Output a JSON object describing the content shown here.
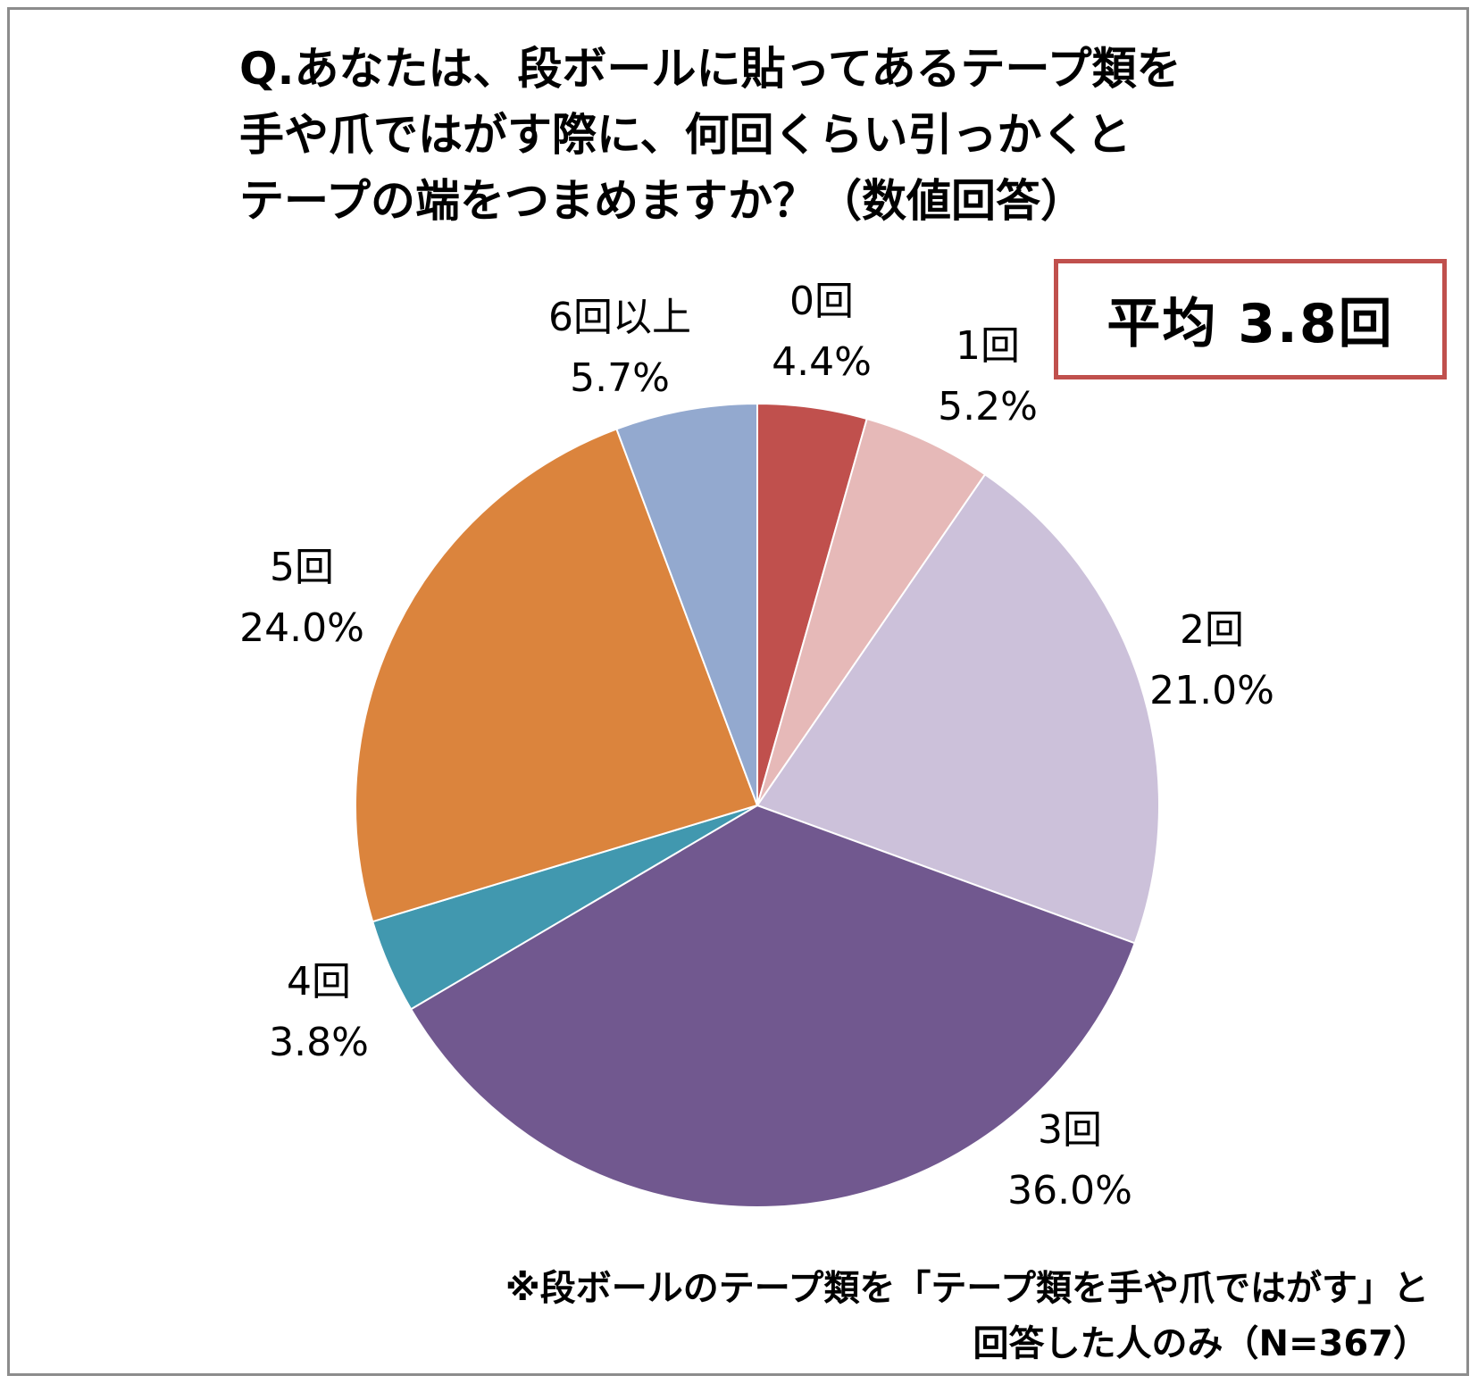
{
  "title": {
    "lines": [
      "Q.あなたは、段ボールに貼ってあるテープ類を",
      "手や爪ではがす際に、何回くらい引っかくと",
      "テープの端をつまめますか？（数値回答）"
    ]
  },
  "average_box": {
    "text": "平均 3.8回"
  },
  "footnote": {
    "lines": [
      "※段ボールのテープ類を「テープ類を手や爪ではがす」と",
      "回答した人のみ（N=367）"
    ]
  },
  "chart_data": {
    "type": "pie",
    "start_angle": "12 o'clock",
    "direction": "clockwise",
    "slices": [
      {
        "label": "0回",
        "value": 4.4,
        "value_label": "4.4%",
        "color": "#c0504d"
      },
      {
        "label": "1回",
        "value": 5.2,
        "value_label": "5.2%",
        "color": "#e6b9b8"
      },
      {
        "label": "2回",
        "value": 21.0,
        "value_label": "21.0%",
        "color": "#ccc1da"
      },
      {
        "label": "3回",
        "value": 36.0,
        "value_label": "36.0%",
        "color": "#71588f"
      },
      {
        "label": "4回",
        "value": 3.8,
        "value_label": "3.8%",
        "color": "#4198af"
      },
      {
        "label": "5回",
        "value": 24.0,
        "value_label": "24.0%",
        "color": "#db843d"
      },
      {
        "label": "6回以上",
        "value": 5.7,
        "value_label": "5.7%",
        "color": "#93a9cf"
      }
    ]
  }
}
